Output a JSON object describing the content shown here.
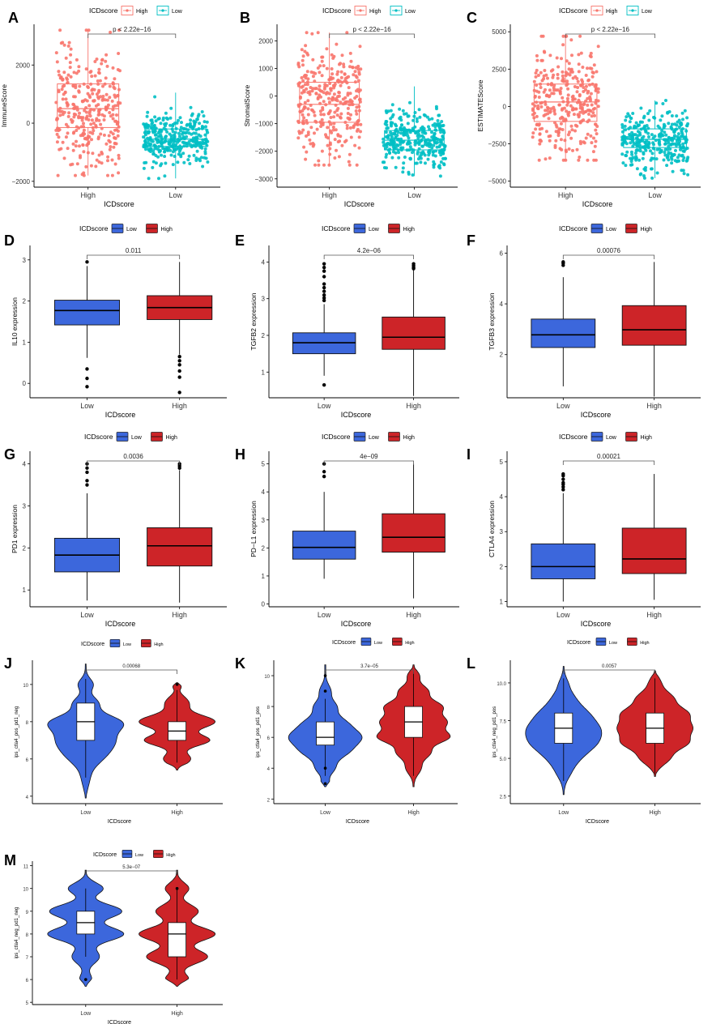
{
  "colors": {
    "high_salmon": "#F8766D",
    "low_teal": "#00BFC4",
    "low_blue": "#3C67DC",
    "high_red": "#CD2428",
    "axis": "#000000",
    "bracket": "#555555"
  },
  "chart_data": [
    {
      "panel": "A",
      "type": "box_jitter",
      "legend_title": "ICDscore",
      "legend_labels": [
        "High",
        "Low"
      ],
      "categories": [
        "High",
        "Low"
      ],
      "xlabel": "ICDscore",
      "ylabel": "ImmuneScore",
      "ylim": [
        -2200,
        3400
      ],
      "yticks": [
        -2000,
        0,
        2000
      ],
      "ytick_labels": [
        "−2000",
        "0",
        "2000"
      ],
      "pvalue": "p < 2.22e−16",
      "boxes": [
        {
          "name": "High",
          "color": "#F8766D",
          "q1": -150,
          "median": 500,
          "q3": 1350,
          "min": -1800,
          "max": 3200
        },
        {
          "name": "Low",
          "color": "#00BFC4",
          "q1": -800,
          "median": -550,
          "q3": -200,
          "min": -1900,
          "max": 1050
        }
      ]
    },
    {
      "panel": "B",
      "type": "box_jitter",
      "legend_title": "ICDscore",
      "legend_labels": [
        "High",
        "Low"
      ],
      "categories": [
        "High",
        "Low"
      ],
      "xlabel": "ICDscore",
      "ylabel": "StromalScore",
      "ylim": [
        -3300,
        2600
      ],
      "yticks": [
        -3000,
        -2000,
        -1000,
        0,
        1000,
        2000
      ],
      "ytick_labels": [
        "−3000",
        "−2000",
        "−1000",
        "0",
        "1000",
        "2000"
      ],
      "pvalue": "p < 2.22e−16",
      "boxes": [
        {
          "name": "High",
          "color": "#F8766D",
          "q1": -950,
          "median": -300,
          "q3": 500,
          "min": -2500,
          "max": 2300
        },
        {
          "name": "Low",
          "color": "#00BFC4",
          "q1": -1950,
          "median": -1600,
          "q3": -1250,
          "min": -2900,
          "max": 350
        }
      ]
    },
    {
      "panel": "C",
      "type": "box_jitter",
      "legend_title": "ICDscore",
      "legend_labels": [
        "High",
        "Low"
      ],
      "categories": [
        "High",
        "Low"
      ],
      "xlabel": "ICDscore",
      "ylabel": "ESTIMATEScore",
      "ylim": [
        -5400,
        5500
      ],
      "yticks": [
        -5000,
        -2500,
        0,
        2500,
        5000
      ],
      "ytick_labels": [
        "−5000",
        "−2500",
        "0",
        "2500",
        "5000"
      ],
      "pvalue": "p < 2.22e−16",
      "boxes": [
        {
          "name": "High",
          "color": "#F8766D",
          "q1": -1000,
          "median": 300,
          "q3": 1500,
          "min": -3600,
          "max": 4700
        },
        {
          "name": "Low",
          "color": "#00BFC4",
          "q1": -2750,
          "median": -2200,
          "q3": -1500,
          "min": -4800,
          "max": 400
        }
      ]
    },
    {
      "panel": "D",
      "type": "box",
      "legend_title": "ICDscore",
      "legend_labels": [
        "Low",
        "High"
      ],
      "categories": [
        "Low",
        "High"
      ],
      "xlabel": "ICDscore",
      "ylabel": "IL10 expression",
      "ylim": [
        -0.35,
        3.35
      ],
      "yticks": [
        0,
        1,
        2,
        3
      ],
      "ytick_labels": [
        "0",
        "1",
        "2",
        "3"
      ],
      "pvalue": "0.011",
      "boxes": [
        {
          "name": "Low",
          "color": "#3C67DC",
          "q1": 1.42,
          "median": 1.77,
          "q3": 2.02,
          "min": 0.62,
          "max": 2.85,
          "outliers": [
            2.95,
            0.35,
            0.12,
            -0.08
          ]
        },
        {
          "name": "High",
          "color": "#CD2428",
          "q1": 1.55,
          "median": 1.84,
          "q3": 2.13,
          "min": 0.7,
          "max": 2.95,
          "outliers": [
            0.65,
            0.55,
            0.45,
            0.3,
            0.15,
            -0.22
          ]
        }
      ]
    },
    {
      "panel": "E",
      "type": "box",
      "legend_title": "ICDscore",
      "legend_labels": [
        "Low",
        "High"
      ],
      "categories": [
        "Low",
        "High"
      ],
      "xlabel": "ICDscore",
      "ylabel": "TGFB2 expression",
      "ylim": [
        0.3,
        4.45
      ],
      "yticks": [
        1,
        2,
        3,
        4
      ],
      "ytick_labels": [
        "1",
        "2",
        "3",
        "4"
      ],
      "pvalue": "4.2e−06",
      "boxes": [
        {
          "name": "Low",
          "color": "#3C67DC",
          "q1": 1.5,
          "median": 1.8,
          "q3": 2.07,
          "min": 0.9,
          "max": 2.85,
          "outliers": [
            3.95,
            3.85,
            3.75,
            3.6,
            3.4,
            3.3,
            3.2,
            3.1,
            3.02,
            2.95,
            0.65
          ]
        },
        {
          "name": "High",
          "color": "#CD2428",
          "q1": 1.62,
          "median": 1.95,
          "q3": 2.5,
          "min": 0.35,
          "max": 3.78,
          "outliers": [
            3.95,
            3.9,
            3.85,
            3.82
          ]
        }
      ]
    },
    {
      "panel": "F",
      "type": "box",
      "legend_title": "ICDscore",
      "legend_labels": [
        "Low",
        "High"
      ],
      "categories": [
        "Low",
        "High"
      ],
      "xlabel": "ICDscore",
      "ylabel": "TGFB3 expression",
      "ylim": [
        0.3,
        6.3
      ],
      "yticks": [
        2,
        4,
        6
      ],
      "ytick_labels": [
        "2",
        "4",
        "6"
      ],
      "pvalue": "0.00076",
      "boxes": [
        {
          "name": "Low",
          "color": "#3C67DC",
          "q1": 2.28,
          "median": 2.78,
          "q3": 3.4,
          "min": 0.75,
          "max": 5.05,
          "outliers": [
            5.65,
            5.6,
            5.52
          ]
        },
        {
          "name": "High",
          "color": "#CD2428",
          "q1": 2.37,
          "median": 2.98,
          "q3": 3.93,
          "min": 0.35,
          "max": 5.65
        }
      ]
    },
    {
      "panel": "G",
      "type": "box",
      "legend_title": "ICDscore",
      "legend_labels": [
        "Low",
        "High"
      ],
      "categories": [
        "Low",
        "High"
      ],
      "xlabel": "ICDscore",
      "ylabel": "PD1 expression",
      "ylim": [
        0.6,
        4.3
      ],
      "yticks": [
        1,
        2,
        3,
        4
      ],
      "ytick_labels": [
        "1",
        "2",
        "3",
        "4"
      ],
      "pvalue": "0.0036",
      "boxes": [
        {
          "name": "Low",
          "color": "#3C67DC",
          "q1": 1.43,
          "median": 1.83,
          "q3": 2.23,
          "min": 0.75,
          "max": 3.3,
          "outliers": [
            4.0,
            3.9,
            3.8,
            3.6,
            3.5
          ]
        },
        {
          "name": "High",
          "color": "#CD2428",
          "q1": 1.57,
          "median": 2.05,
          "q3": 2.48,
          "min": 0.7,
          "max": 3.85,
          "outliers": [
            4.0,
            3.95,
            3.9
          ]
        }
      ]
    },
    {
      "panel": "H",
      "type": "box",
      "legend_title": "ICDscore",
      "legend_labels": [
        "Low",
        "High"
      ],
      "categories": [
        "Low",
        "High"
      ],
      "xlabel": "ICDscore",
      "ylabel": "PD−L1 expression",
      "ylim": [
        -0.1,
        5.45
      ],
      "yticks": [
        0,
        1,
        2,
        3,
        4,
        5
      ],
      "ytick_labels": [
        "0",
        "1",
        "2",
        "3",
        "4",
        "5"
      ],
      "pvalue": "4e−09",
      "boxes": [
        {
          "name": "Low",
          "color": "#3C67DC",
          "q1": 1.6,
          "median": 2.02,
          "q3": 2.6,
          "min": 0.9,
          "max": 4.0,
          "outliers": [
            5.0,
            4.72,
            4.55
          ]
        },
        {
          "name": "High",
          "color": "#CD2428",
          "q1": 1.85,
          "median": 2.38,
          "q3": 3.22,
          "min": 0.2,
          "max": 5.0
        }
      ]
    },
    {
      "panel": "I",
      "type": "box",
      "legend_title": "ICDscore",
      "legend_labels": [
        "Low",
        "High"
      ],
      "categories": [
        "Low",
        "High"
      ],
      "xlabel": "ICDscore",
      "ylabel": "CTLA4 expression",
      "ylim": [
        0.85,
        5.3
      ],
      "yticks": [
        1,
        2,
        3,
        4,
        5
      ],
      "ytick_labels": [
        "1",
        "2",
        "3",
        "4",
        "5"
      ],
      "pvalue": "0.00021",
      "boxes": [
        {
          "name": "Low",
          "color": "#3C67DC",
          "q1": 1.65,
          "median": 2.0,
          "q3": 2.65,
          "min": 1.0,
          "max": 4.1,
          "outliers": [
            4.65,
            4.6,
            4.5,
            4.4,
            4.35,
            4.28,
            4.2
          ]
        },
        {
          "name": "High",
          "color": "#CD2428",
          "q1": 1.8,
          "median": 2.22,
          "q3": 3.1,
          "min": 1.05,
          "max": 4.65
        }
      ]
    },
    {
      "panel": "J",
      "type": "violin",
      "legend_title": "ICDscore",
      "legend_labels": [
        "Low",
        "High"
      ],
      "categories": [
        "Low",
        "High"
      ],
      "xlabel": "ICDscore",
      "ylabel": "ips_ctla4_pos_pd1_neg",
      "ylim": [
        3.6,
        11.3
      ],
      "yticks": [
        4,
        6,
        8,
        10
      ],
      "ytick_labels": [
        "4",
        "6",
        "8",
        "10"
      ],
      "pvalue": "0.00068",
      "violins": [
        {
          "name": "Low",
          "color": "#3C67DC",
          "min": 3.9,
          "max": 11.1,
          "modes": [
            [
              7,
              0.7,
              1.0
            ],
            [
              8,
              0.4,
              0.9
            ],
            [
              9,
              0.35,
              0.4
            ],
            [
              10,
              0.3,
              0.25
            ],
            [
              6,
              0.45,
              0.25
            ],
            [
              5,
              0.5,
              0.12
            ]
          ],
          "q1": 7,
          "median": 8,
          "q3": 9,
          "whisker_low": 5,
          "whisker_high": 10.3,
          "outliers": []
        },
        {
          "name": "High",
          "color": "#CD2428",
          "min": 5.4,
          "max": 10.1,
          "modes": [
            [
              8,
              0.35,
              1.0
            ],
            [
              7,
              0.3,
              0.85
            ],
            [
              6,
              0.3,
              0.35
            ],
            [
              9,
              0.35,
              0.3
            ],
            [
              10,
              0.15,
              0.2
            ]
          ],
          "q1": 7,
          "median": 7.5,
          "q3": 8,
          "whisker_low": 5.8,
          "whisker_high": 9.7,
          "outliers": [
            10
          ]
        }
      ]
    },
    {
      "panel": "K",
      "type": "violin",
      "legend_title": "ICDscore",
      "legend_labels": [
        "Low",
        "High"
      ],
      "categories": [
        "Low",
        "High"
      ],
      "xlabel": "ICDscore",
      "ylabel": "ips_ctla4_pos_pd1_pos",
      "ylim": [
        1.7,
        11.0
      ],
      "yticks": [
        2,
        4,
        6,
        8,
        10
      ],
      "ytick_labels": [
        "2",
        "4",
        "6",
        "8",
        "10"
      ],
      "pvalue": "3.7e−05",
      "violins": [
        {
          "name": "Low",
          "color": "#3C67DC",
          "min": 2.8,
          "max": 10.7,
          "modes": [
            [
              6,
              0.55,
              1.0
            ],
            [
              5,
              0.45,
              0.5
            ],
            [
              7,
              0.45,
              0.45
            ],
            [
              8,
              0.4,
              0.3
            ],
            [
              4,
              0.4,
              0.25
            ],
            [
              9,
              0.4,
              0.15
            ],
            [
              3,
              0.3,
              0.1
            ]
          ],
          "q1": 5.5,
          "median": 6,
          "q3": 7,
          "whisker_low": 3.5,
          "whisker_high": 8.5,
          "outliers": [
            10,
            9,
            4,
            3
          ]
        },
        {
          "name": "High",
          "color": "#CD2428",
          "min": 2.8,
          "max": 10.7,
          "modes": [
            [
              6,
              0.4,
              0.95
            ],
            [
              7,
              0.45,
              0.9
            ],
            [
              8,
              0.4,
              0.75
            ],
            [
              9,
              0.4,
              0.4
            ],
            [
              5,
              0.4,
              0.45
            ],
            [
              4,
              0.4,
              0.2
            ],
            [
              10,
              0.3,
              0.15
            ]
          ],
          "q1": 6,
          "median": 7,
          "q3": 8,
          "whisker_low": 3.5,
          "whisker_high": 10.2,
          "outliers": []
        }
      ]
    },
    {
      "panel": "L",
      "type": "violin",
      "legend_title": "ICDscore",
      "legend_labels": [
        "Low",
        "High"
      ],
      "categories": [
        "Low",
        "High"
      ],
      "xlabel": "ICDscore",
      "ylabel": "ips_ctla4_neg_pd1_pos",
      "ylim": [
        2.0,
        11.5
      ],
      "yticks": [
        2.5,
        5.0,
        7.5,
        10.0
      ],
      "ytick_labels": [
        "2.5",
        "5.0",
        "7.5",
        "10.0"
      ],
      "pvalue": "0.0057",
      "violins": [
        {
          "name": "Low",
          "color": "#3C67DC",
          "min": 2.6,
          "max": 11.1,
          "modes": [
            [
              6,
              0.6,
              0.85
            ],
            [
              7,
              0.6,
              0.95
            ],
            [
              8,
              0.55,
              0.6
            ],
            [
              5,
              0.6,
              0.4
            ],
            [
              9,
              0.55,
              0.3
            ],
            [
              4,
              0.5,
              0.15
            ],
            [
              10,
              0.4,
              0.1
            ]
          ],
          "q1": 6,
          "median": 7,
          "q3": 8,
          "whisker_low": 3.5,
          "whisker_high": 10.3,
          "outliers": []
        },
        {
          "name": "High",
          "color": "#CD2428",
          "min": 3.8,
          "max": 10.8,
          "modes": [
            [
              6,
              0.45,
              0.85
            ],
            [
              7,
              0.5,
              1.0
            ],
            [
              8,
              0.45,
              0.85
            ],
            [
              9,
              0.45,
              0.5
            ],
            [
              5,
              0.45,
              0.4
            ],
            [
              10,
              0.4,
              0.15
            ]
          ],
          "q1": 6,
          "median": 7,
          "q3": 8,
          "whisker_low": 4,
          "whisker_high": 10.3,
          "outliers": []
        }
      ]
    },
    {
      "panel": "M",
      "type": "violin",
      "legend_title": "ICDscore",
      "legend_labels": [
        "Low",
        "High"
      ],
      "categories": [
        "Low",
        "High"
      ],
      "xlabel": "ICDscore",
      "ylabel": "ips_ctla4_neg_pd1_neg",
      "ylim": [
        4.9,
        11.2
      ],
      "yticks": [
        5,
        6,
        7,
        8,
        9,
        10,
        11
      ],
      "ytick_labels": [
        "5",
        "6",
        "7",
        "8",
        "9",
        "10",
        "11"
      ],
      "pvalue": "5.3e−07",
      "violins": [
        {
          "name": "Low",
          "color": "#3C67DC",
          "min": 5.7,
          "max": 10.8,
          "modes": [
            [
              8,
              0.3,
              1.0
            ],
            [
              9,
              0.3,
              0.95
            ],
            [
              10,
              0.25,
              0.45
            ],
            [
              7,
              0.3,
              0.35
            ],
            [
              6,
              0.25,
              0.15
            ]
          ],
          "q1": 8,
          "median": 8.5,
          "q3": 9,
          "whisker_low": 7,
          "whisker_high": 10,
          "outliers": [
            6
          ]
        },
        {
          "name": "High",
          "color": "#CD2428",
          "min": 5.7,
          "max": 10.8,
          "modes": [
            [
              8,
              0.3,
              1.0
            ],
            [
              7,
              0.3,
              0.8
            ],
            [
              9,
              0.3,
              0.55
            ],
            [
              6,
              0.25,
              0.3
            ],
            [
              10,
              0.25,
              0.3
            ]
          ],
          "q1": 7,
          "median": 8,
          "q3": 8.5,
          "whisker_low": 6,
          "whisker_high": 10,
          "outliers": [
            10
          ]
        }
      ]
    }
  ]
}
